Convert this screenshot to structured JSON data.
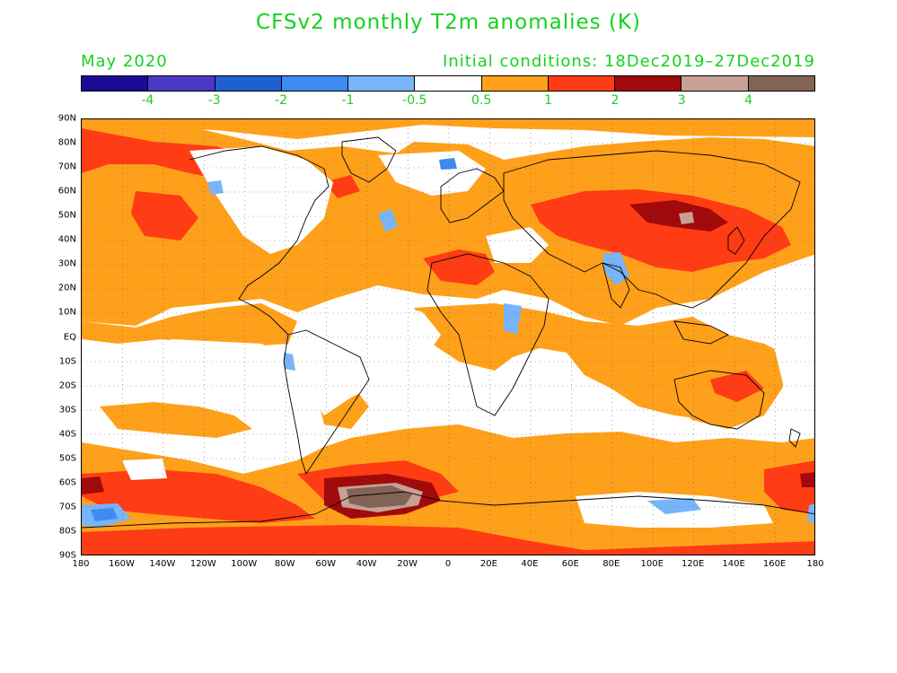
{
  "title": "CFSv2 monthly T2m anomalies (K)",
  "valid_month": "May 2020",
  "initial_conditions": "Initial conditions: 18Dec2019–27Dec2019",
  "colors": {
    "text": "#14d21e",
    "bins": [
      "#1a0a96",
      "#4b37c8",
      "#1e5fd2",
      "#3c8cf0",
      "#78b4fa",
      "#ffffff",
      "#ffa01a",
      "#ff3c14",
      "#a00a0a",
      "#c8a096",
      "#826455"
    ]
  },
  "colorbar_labels": [
    "-4",
    "-3",
    "-2",
    "-1",
    "-0.5",
    "0.5",
    "1",
    "2",
    "3",
    "4"
  ],
  "lat_labels": [
    "90N",
    "80N",
    "70N",
    "60N",
    "50N",
    "40N",
    "30N",
    "20N",
    "10N",
    "EQ",
    "10S",
    "20S",
    "30S",
    "40S",
    "50S",
    "60S",
    "70S",
    "80S",
    "90S"
  ],
  "lon_labels": [
    "180",
    "160W",
    "140W",
    "120W",
    "100W",
    "80W",
    "60W",
    "40W",
    "20W",
    "0",
    "20E",
    "40E",
    "60E",
    "80E",
    "100E",
    "120E",
    "140E",
    "160E",
    "180"
  ]
}
